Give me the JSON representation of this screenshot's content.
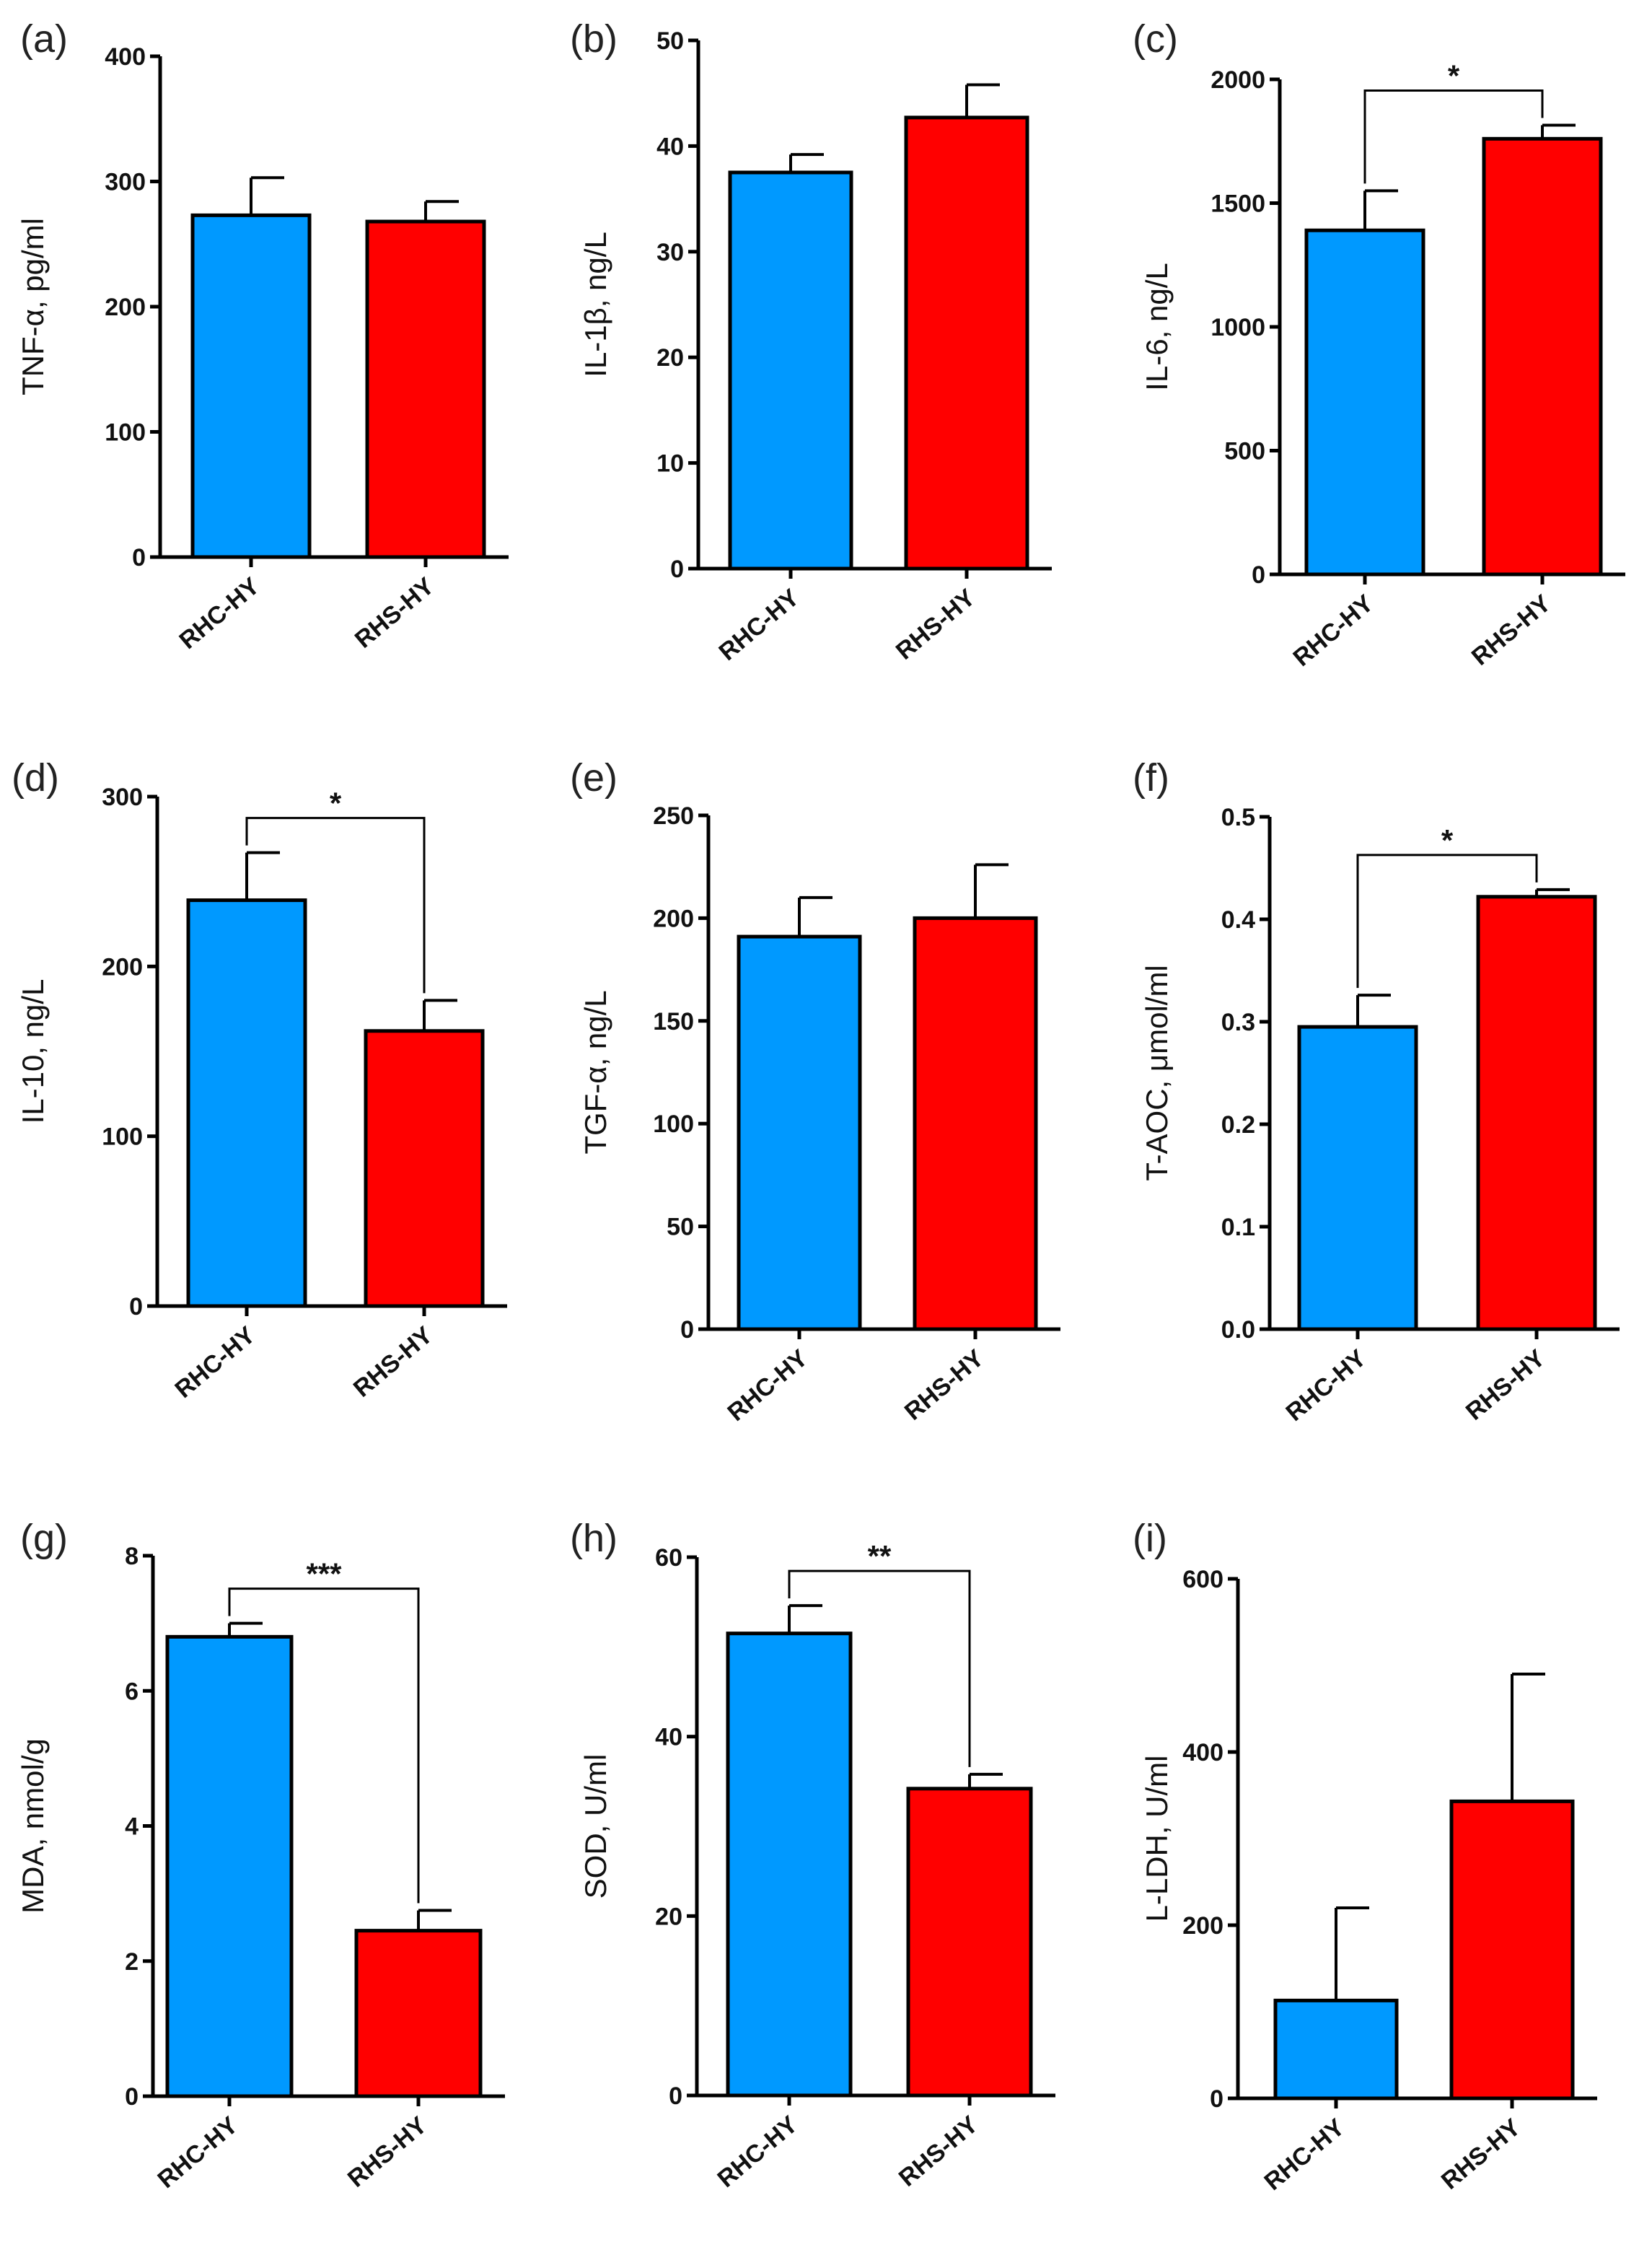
{
  "colors": {
    "RHC-HY": "#0099ff",
    "RHS-HY": "#ff0000",
    "axis": "#000000"
  },
  "chart_data": [
    {
      "panel": "(a)",
      "type": "bar",
      "categories": [
        "RHC-HY",
        "RHS-HY"
      ],
      "values": [
        273,
        268
      ],
      "errors": [
        30,
        16
      ],
      "ylabel": "TNF-α, pg/ml",
      "ylim": [
        0,
        400
      ],
      "yticks": [
        "0",
        "100",
        "200",
        "300",
        "400"
      ],
      "significance": null
    },
    {
      "panel": "(b)",
      "type": "bar",
      "categories": [
        "RHC-HY",
        "RHS-HY"
      ],
      "values": [
        37.5,
        42.7
      ],
      "errors": [
        1.7,
        3.1
      ],
      "ylabel": "IL-1β, ng/L",
      "ylim": [
        0,
        50
      ],
      "yticks": [
        "0",
        "10",
        "20",
        "30",
        "40",
        "50"
      ],
      "significance": null
    },
    {
      "panel": "(c)",
      "type": "bar",
      "categories": [
        "RHC-HY",
        "RHS-HY"
      ],
      "values": [
        1390,
        1760
      ],
      "errors": [
        160,
        55
      ],
      "ylabel": "IL-6, ng/L",
      "ylim": [
        0,
        2000
      ],
      "yticks": [
        "0",
        "500",
        "1000",
        "1500",
        "2000"
      ],
      "significance": "*"
    },
    {
      "panel": "(d)",
      "type": "bar",
      "categories": [
        "RHC-HY",
        "RHS-HY"
      ],
      "values": [
        239,
        162
      ],
      "errors": [
        28,
        18
      ],
      "ylabel": "IL-10, ng/L",
      "ylim": [
        0,
        300
      ],
      "yticks": [
        "0",
        "100",
        "200",
        "300"
      ],
      "significance": "*"
    },
    {
      "panel": "(e)",
      "type": "bar",
      "categories": [
        "RHC-HY",
        "RHS-HY"
      ],
      "values": [
        191,
        200
      ],
      "errors": [
        19,
        26
      ],
      "ylabel": "TGF-α, ng/L",
      "ylim": [
        0,
        250
      ],
      "yticks": [
        "0",
        "50",
        "100",
        "150",
        "200",
        "250"
      ],
      "significance": null
    },
    {
      "panel": "(f)",
      "type": "bar",
      "categories": [
        "RHC-HY",
        "RHS-HY"
      ],
      "values": [
        0.295,
        0.422
      ],
      "errors": [
        0.031,
        0.007
      ],
      "ylabel": "T-AOC, μmol/ml",
      "ylim": [
        0,
        0.5
      ],
      "yticks": [
        "0.0",
        "0.1",
        "0.2",
        "0.3",
        "0.4",
        "0.5"
      ],
      "significance": "*"
    },
    {
      "panel": "(g)",
      "type": "bar",
      "categories": [
        "RHC-HY",
        "RHS-HY"
      ],
      "values": [
        6.8,
        2.45
      ],
      "errors": [
        0.2,
        0.3
      ],
      "ylabel": "MDA, nmol/g",
      "ylim": [
        0,
        8
      ],
      "yticks": [
        "0",
        "2",
        "4",
        "6",
        "8"
      ],
      "significance": "***"
    },
    {
      "panel": "(h)",
      "type": "bar",
      "categories": [
        "RHC-HY",
        "RHS-HY"
      ],
      "values": [
        51.5,
        34.2
      ],
      "errors": [
        3.1,
        1.6
      ],
      "ylabel": "SOD, U/ml",
      "ylim": [
        0,
        60
      ],
      "yticks": [
        "0",
        "20",
        "40",
        "60"
      ],
      "significance": "**"
    },
    {
      "panel": "(i)",
      "type": "bar",
      "categories": [
        "RHC-HY",
        "RHS-HY"
      ],
      "values": [
        113,
        343
      ],
      "errors": [
        107,
        147
      ],
      "ylabel": "L-LDH, U/ml",
      "ylim": [
        0,
        600
      ],
      "yticks": [
        "0",
        "200",
        "400",
        "600"
      ],
      "significance": null
    }
  ]
}
